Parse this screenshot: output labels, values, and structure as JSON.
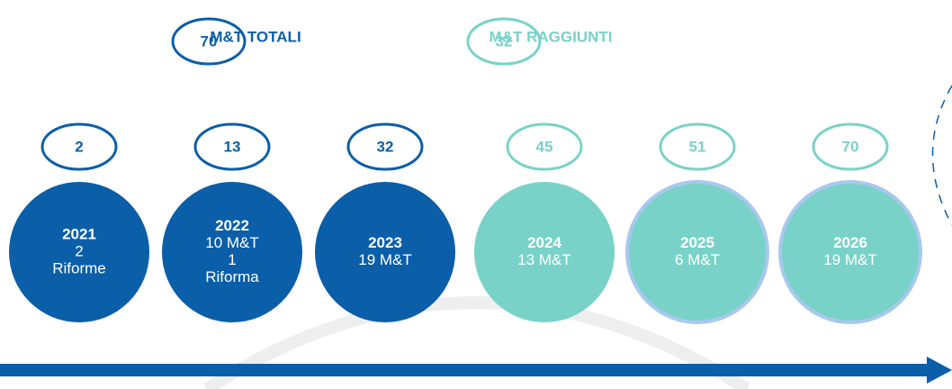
{
  "legend": [
    {
      "value": "70",
      "label": "M&T TOTALI",
      "color": "#0b5ea8"
    },
    {
      "value": "32",
      "label": "M&T RAGGIUNTI",
      "color": "#79d2c8"
    }
  ],
  "timeline": [
    {
      "cumulative": "2",
      "year": "2021",
      "lines": [
        "2",
        "Riforme"
      ],
      "color": "#0b5ea8"
    },
    {
      "cumulative": "13",
      "year": "2022",
      "lines": [
        "10 M&T",
        "1",
        "Riforma"
      ],
      "color": "#0b5ea8"
    },
    {
      "cumulative": "32",
      "year": "2023",
      "lines": [
        "19 M&T"
      ],
      "color": "#0b5ea8"
    },
    {
      "cumulative": "45",
      "year": "2024",
      "lines": [
        "13 M&T"
      ],
      "color": "#79d2c8"
    },
    {
      "cumulative": "51",
      "year": "2025",
      "lines": [
        "6 M&T"
      ],
      "color": "#79d2c8"
    },
    {
      "cumulative": "70",
      "year": "2026",
      "lines": [
        "19 M&T"
      ],
      "color": "#79d2c8"
    }
  ]
}
